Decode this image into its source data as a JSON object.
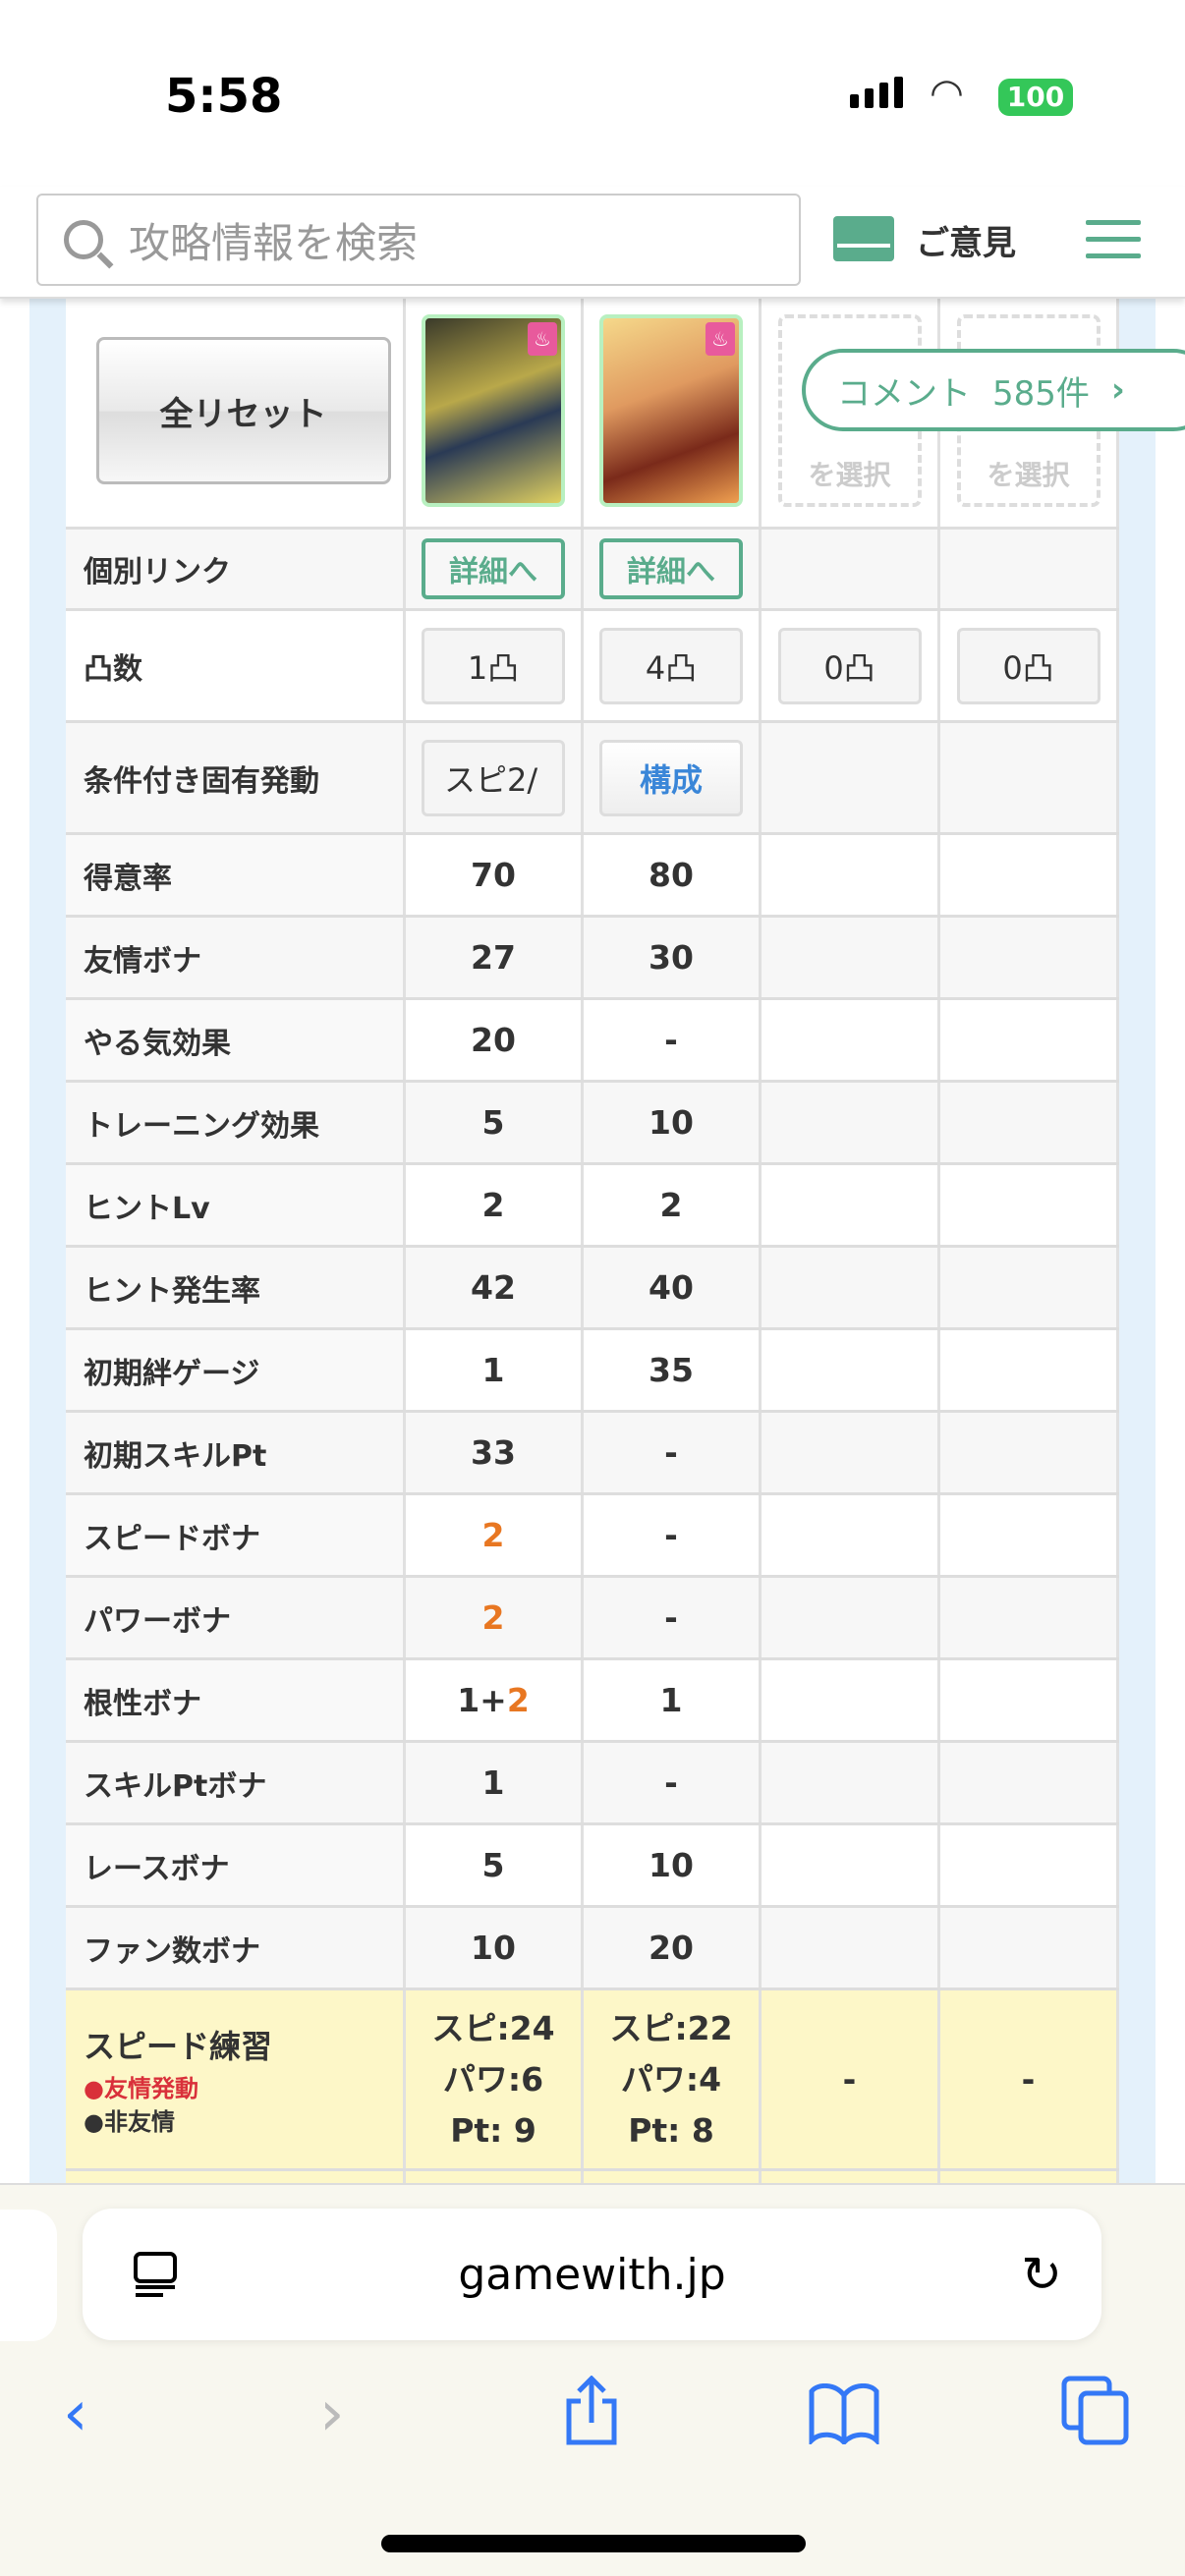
{
  "status": {
    "time": "5:58",
    "battery": "100"
  },
  "header": {
    "search_placeholder": "攻略情報を検索",
    "opinion": "ご意見"
  },
  "comment": {
    "label": "コメント",
    "count": "585件"
  },
  "table": {
    "reset": "全リセット",
    "empty_slot": "を選択",
    "link_label": "個別リンク",
    "link_text": "詳細へ",
    "totsu_label": "凸数",
    "totsu": [
      "1凸",
      "4凸",
      "0凸",
      "0凸"
    ],
    "cond_label": "条件付き固有発動",
    "cond": [
      "スピ2/",
      "構成"
    ],
    "rows": [
      {
        "label": "得意率",
        "vals": [
          {
            "t": "70"
          },
          {
            "t": "80"
          },
          {
            "t": ""
          },
          {
            "t": ""
          }
        ]
      },
      {
        "label": "友情ボナ",
        "vals": [
          {
            "t": "27"
          },
          {
            "t": "30"
          },
          {
            "t": ""
          },
          {
            "t": ""
          }
        ]
      },
      {
        "label": "やる気効果",
        "vals": [
          {
            "t": "20"
          },
          {
            "t": "-"
          },
          {
            "t": ""
          },
          {
            "t": ""
          }
        ]
      },
      {
        "label": "トレーニング効果",
        "vals": [
          {
            "t": "5"
          },
          {
            "t": "10"
          },
          {
            "t": ""
          },
          {
            "t": ""
          }
        ]
      },
      {
        "label": "ヒントLv",
        "vals": [
          {
            "t": "2"
          },
          {
            "t": "2"
          },
          {
            "t": ""
          },
          {
            "t": ""
          }
        ]
      },
      {
        "label": "ヒント発生率",
        "vals": [
          {
            "t": "42"
          },
          {
            "t": "40"
          },
          {
            "t": ""
          },
          {
            "t": ""
          }
        ]
      },
      {
        "label": "初期絆ゲージ",
        "vals": [
          {
            "t": "1"
          },
          {
            "t": "35"
          },
          {
            "t": ""
          },
          {
            "t": ""
          }
        ]
      },
      {
        "label": "初期スキルPt",
        "vals": [
          {
            "t": "33"
          },
          {
            "t": "-"
          },
          {
            "t": ""
          },
          {
            "t": ""
          }
        ]
      },
      {
        "label": "スピードボナ",
        "vals": [
          {
            "t": "",
            "h": "2"
          },
          {
            "t": "-"
          },
          {
            "t": ""
          },
          {
            "t": ""
          }
        ]
      },
      {
        "label": "パワーボナ",
        "vals": [
          {
            "t": "",
            "h": "2"
          },
          {
            "t": "-"
          },
          {
            "t": ""
          },
          {
            "t": ""
          }
        ]
      },
      {
        "label": "根性ボナ",
        "vals": [
          {
            "t": "1+",
            "h": "2"
          },
          {
            "t": "1"
          },
          {
            "t": ""
          },
          {
            "t": ""
          }
        ]
      },
      {
        "label": "スキルPtボナ",
        "vals": [
          {
            "t": "1"
          },
          {
            "t": "-"
          },
          {
            "t": ""
          },
          {
            "t": ""
          }
        ]
      },
      {
        "label": "レースボナ",
        "vals": [
          {
            "t": "5"
          },
          {
            "t": "10"
          },
          {
            "t": ""
          },
          {
            "t": ""
          }
        ]
      },
      {
        "label": "ファン数ボナ",
        "vals": [
          {
            "t": "10"
          },
          {
            "t": "20"
          },
          {
            "t": ""
          },
          {
            "t": ""
          }
        ]
      }
    ],
    "speed": {
      "label": "スピード練習",
      "friend": "●友情発動",
      "nonfriend": "●非友情",
      "vals": [
        [
          "スピ:24",
          "パワ:6",
          "Pt: 9"
        ],
        [
          "スピ:22",
          "パワ:4",
          "Pt: 8"
        ],
        [
          "-"
        ],
        [
          "-"
        ]
      ]
    }
  },
  "browser": {
    "url": "gamewith.jp"
  },
  "colors": {
    "accent": "#5aac8c",
    "highlight": "#e87722",
    "friend": "#d9303a",
    "training_row": "#fdf7c8"
  }
}
